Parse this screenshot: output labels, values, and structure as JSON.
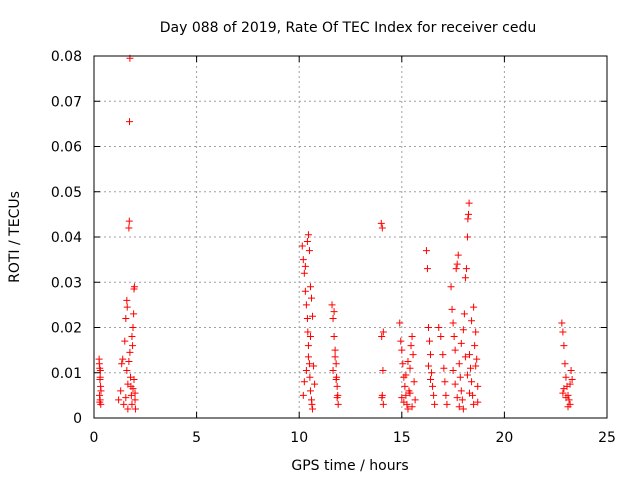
{
  "chart_data": {
    "type": "scatter",
    "title": "Day 088 of 2019, Rate Of TEC Index for receiver cedu",
    "xlabel": "GPS time / hours",
    "ylabel": "ROTI / TECUs",
    "xlim": [
      0,
      25
    ],
    "ylim": [
      0,
      0.08
    ],
    "xticks": [
      0,
      5,
      10,
      15,
      20,
      25
    ],
    "xtick_labels": [
      "0",
      "5",
      "10",
      "15",
      "20",
      "25"
    ],
    "yticks": [
      0,
      0.01,
      0.02,
      0.03,
      0.04,
      0.05,
      0.06,
      0.07,
      0.08
    ],
    "ytick_labels": [
      "0",
      "0.01",
      "0.02",
      "0.03",
      "0.04",
      "0.05",
      "0.06",
      "0.07",
      "0.08"
    ],
    "grid": true,
    "marker": "+",
    "marker_color": "#ff0000",
    "series": [
      {
        "name": "ROTI",
        "points": [
          [
            0.25,
            0.013
          ],
          [
            0.28,
            0.011
          ],
          [
            0.3,
            0.009
          ],
          [
            0.32,
            0.007
          ],
          [
            0.27,
            0.005
          ],
          [
            0.3,
            0.004
          ],
          [
            0.33,
            0.003
          ],
          [
            0.26,
            0.012
          ],
          [
            0.31,
            0.0105
          ],
          [
            0.29,
            0.0085
          ],
          [
            0.34,
            0.006
          ],
          [
            0.28,
            0.0035
          ],
          [
            1.2,
            0.004
          ],
          [
            1.3,
            0.006
          ],
          [
            1.35,
            0.012
          ],
          [
            1.4,
            0.013
          ],
          [
            1.45,
            0.003
          ],
          [
            1.5,
            0.017
          ],
          [
            1.55,
            0.022
          ],
          [
            1.6,
            0.026
          ],
          [
            1.62,
            0.0245
          ],
          [
            1.65,
            0.002
          ],
          [
            1.7,
            0.042
          ],
          [
            1.72,
            0.0435
          ],
          [
            1.73,
            0.0655
          ],
          [
            1.75,
            0.0795
          ],
          [
            1.78,
            0.009
          ],
          [
            1.8,
            0.007
          ],
          [
            1.82,
            0.005
          ],
          [
            1.85,
            0.003
          ],
          [
            1.88,
            0.016
          ],
          [
            1.9,
            0.02
          ],
          [
            1.93,
            0.023
          ],
          [
            1.95,
            0.0285
          ],
          [
            1.97,
            0.029
          ],
          [
            2.0,
            0.004
          ],
          [
            2.02,
            0.002
          ],
          [
            1.6,
            0.0105
          ],
          [
            1.7,
            0.0125
          ],
          [
            1.75,
            0.0145
          ],
          [
            1.85,
            0.018
          ],
          [
            1.9,
            0.0065
          ],
          [
            1.95,
            0.0085
          ],
          [
            2.0,
            0.0055
          ],
          [
            1.55,
            0.0045
          ],
          [
            1.65,
            0.0075
          ],
          [
            10.15,
            0.038
          ],
          [
            10.2,
            0.035
          ],
          [
            10.25,
            0.032
          ],
          [
            10.3,
            0.028
          ],
          [
            10.35,
            0.025
          ],
          [
            10.4,
            0.022
          ],
          [
            10.42,
            0.019
          ],
          [
            10.45,
            0.016
          ],
          [
            10.5,
            0.012
          ],
          [
            10.52,
            0.009
          ],
          [
            10.55,
            0.006
          ],
          [
            10.6,
            0.004
          ],
          [
            10.62,
            0.003
          ],
          [
            10.65,
            0.002
          ],
          [
            10.3,
            0.0335
          ],
          [
            10.4,
            0.039
          ],
          [
            10.45,
            0.0405
          ],
          [
            10.5,
            0.037
          ],
          [
            10.55,
            0.029
          ],
          [
            10.6,
            0.0265
          ],
          [
            10.2,
            0.005
          ],
          [
            10.25,
            0.008
          ],
          [
            10.35,
            0.0105
          ],
          [
            10.45,
            0.0135
          ],
          [
            10.55,
            0.018
          ],
          [
            10.65,
            0.0225
          ],
          [
            10.7,
            0.0115
          ],
          [
            10.75,
            0.0075
          ],
          [
            11.6,
            0.025
          ],
          [
            11.65,
            0.022
          ],
          [
            11.7,
            0.018
          ],
          [
            11.75,
            0.015
          ],
          [
            11.8,
            0.012
          ],
          [
            11.82,
            0.009
          ],
          [
            11.85,
            0.007
          ],
          [
            11.88,
            0.005
          ],
          [
            11.9,
            0.003
          ],
          [
            11.7,
            0.0235
          ],
          [
            11.75,
            0.0135
          ],
          [
            11.8,
            0.0085
          ],
          [
            11.85,
            0.0045
          ],
          [
            11.65,
            0.0105
          ],
          [
            14.0,
            0.043
          ],
          [
            14.05,
            0.042
          ],
          [
            14.1,
            0.019
          ],
          [
            14.02,
            0.018
          ],
          [
            14.08,
            0.0105
          ],
          [
            14.05,
            0.005
          ],
          [
            14.1,
            0.003
          ],
          [
            14.03,
            0.0045
          ],
          [
            14.9,
            0.021
          ],
          [
            14.95,
            0.017
          ],
          [
            15.0,
            0.015
          ],
          [
            15.05,
            0.012
          ],
          [
            15.1,
            0.009
          ],
          [
            15.15,
            0.007
          ],
          [
            15.2,
            0.005
          ],
          [
            15.25,
            0.003
          ],
          [
            15.3,
            0.002
          ],
          [
            15.35,
            0.006
          ],
          [
            15.4,
            0.011
          ],
          [
            15.45,
            0.016
          ],
          [
            15.5,
            0.018
          ],
          [
            15.55,
            0.014
          ],
          [
            15.6,
            0.008
          ],
          [
            15.65,
            0.004
          ],
          [
            15.0,
            0.0045
          ],
          [
            15.1,
            0.0035
          ],
          [
            15.2,
            0.0095
          ],
          [
            15.3,
            0.0125
          ],
          [
            15.4,
            0.0055
          ],
          [
            15.5,
            0.0025
          ],
          [
            16.2,
            0.037
          ],
          [
            16.25,
            0.033
          ],
          [
            16.3,
            0.02
          ],
          [
            16.35,
            0.017
          ],
          [
            16.4,
            0.014
          ],
          [
            16.45,
            0.01
          ],
          [
            16.5,
            0.007
          ],
          [
            16.55,
            0.005
          ],
          [
            16.6,
            0.003
          ],
          [
            16.4,
            0.0085
          ],
          [
            16.3,
            0.0115
          ],
          [
            16.8,
            0.02
          ],
          [
            16.9,
            0.018
          ],
          [
            17.0,
            0.014
          ],
          [
            17.05,
            0.011
          ],
          [
            17.1,
            0.008
          ],
          [
            17.15,
            0.005
          ],
          [
            17.2,
            0.003
          ],
          [
            17.4,
            0.029
          ],
          [
            17.45,
            0.024
          ],
          [
            17.5,
            0.021
          ],
          [
            17.55,
            0.018
          ],
          [
            17.6,
            0.015
          ],
          [
            17.65,
            0.033
          ],
          [
            17.7,
            0.034
          ],
          [
            17.75,
            0.036
          ],
          [
            17.8,
            0.012
          ],
          [
            17.85,
            0.009
          ],
          [
            17.9,
            0.006
          ],
          [
            17.95,
            0.004
          ],
          [
            18.0,
            0.002
          ],
          [
            18.05,
            0.023
          ],
          [
            18.1,
            0.031
          ],
          [
            18.15,
            0.033
          ],
          [
            18.2,
            0.04
          ],
          [
            18.22,
            0.044
          ],
          [
            18.25,
            0.045
          ],
          [
            18.28,
            0.0475
          ],
          [
            18.3,
            0.014
          ],
          [
            18.35,
            0.011
          ],
          [
            18.4,
            0.008
          ],
          [
            18.45,
            0.005
          ],
          [
            18.5,
            0.003
          ],
          [
            18.55,
            0.016
          ],
          [
            18.6,
            0.019
          ],
          [
            18.65,
            0.013
          ],
          [
            18.7,
            0.007
          ],
          [
            17.5,
            0.0105
          ],
          [
            17.6,
            0.0075
          ],
          [
            17.7,
            0.0045
          ],
          [
            17.8,
            0.0025
          ],
          [
            17.9,
            0.0165
          ],
          [
            18.0,
            0.0195
          ],
          [
            18.1,
            0.0135
          ],
          [
            18.2,
            0.0095
          ],
          [
            18.3,
            0.0055
          ],
          [
            18.4,
            0.0215
          ],
          [
            18.5,
            0.0245
          ],
          [
            18.6,
            0.0115
          ],
          [
            18.7,
            0.0035
          ],
          [
            22.8,
            0.021
          ],
          [
            22.85,
            0.019
          ],
          [
            22.9,
            0.016
          ],
          [
            22.95,
            0.012
          ],
          [
            23.0,
            0.009
          ],
          [
            23.05,
            0.007
          ],
          [
            23.1,
            0.005
          ],
          [
            23.15,
            0.004
          ],
          [
            23.2,
            0.003
          ],
          [
            23.25,
            0.0105
          ],
          [
            23.3,
            0.0085
          ],
          [
            22.9,
            0.0065
          ],
          [
            23.0,
            0.0045
          ],
          [
            23.1,
            0.0025
          ],
          [
            23.2,
            0.0075
          ],
          [
            22.85,
            0.0055
          ]
        ]
      }
    ]
  }
}
